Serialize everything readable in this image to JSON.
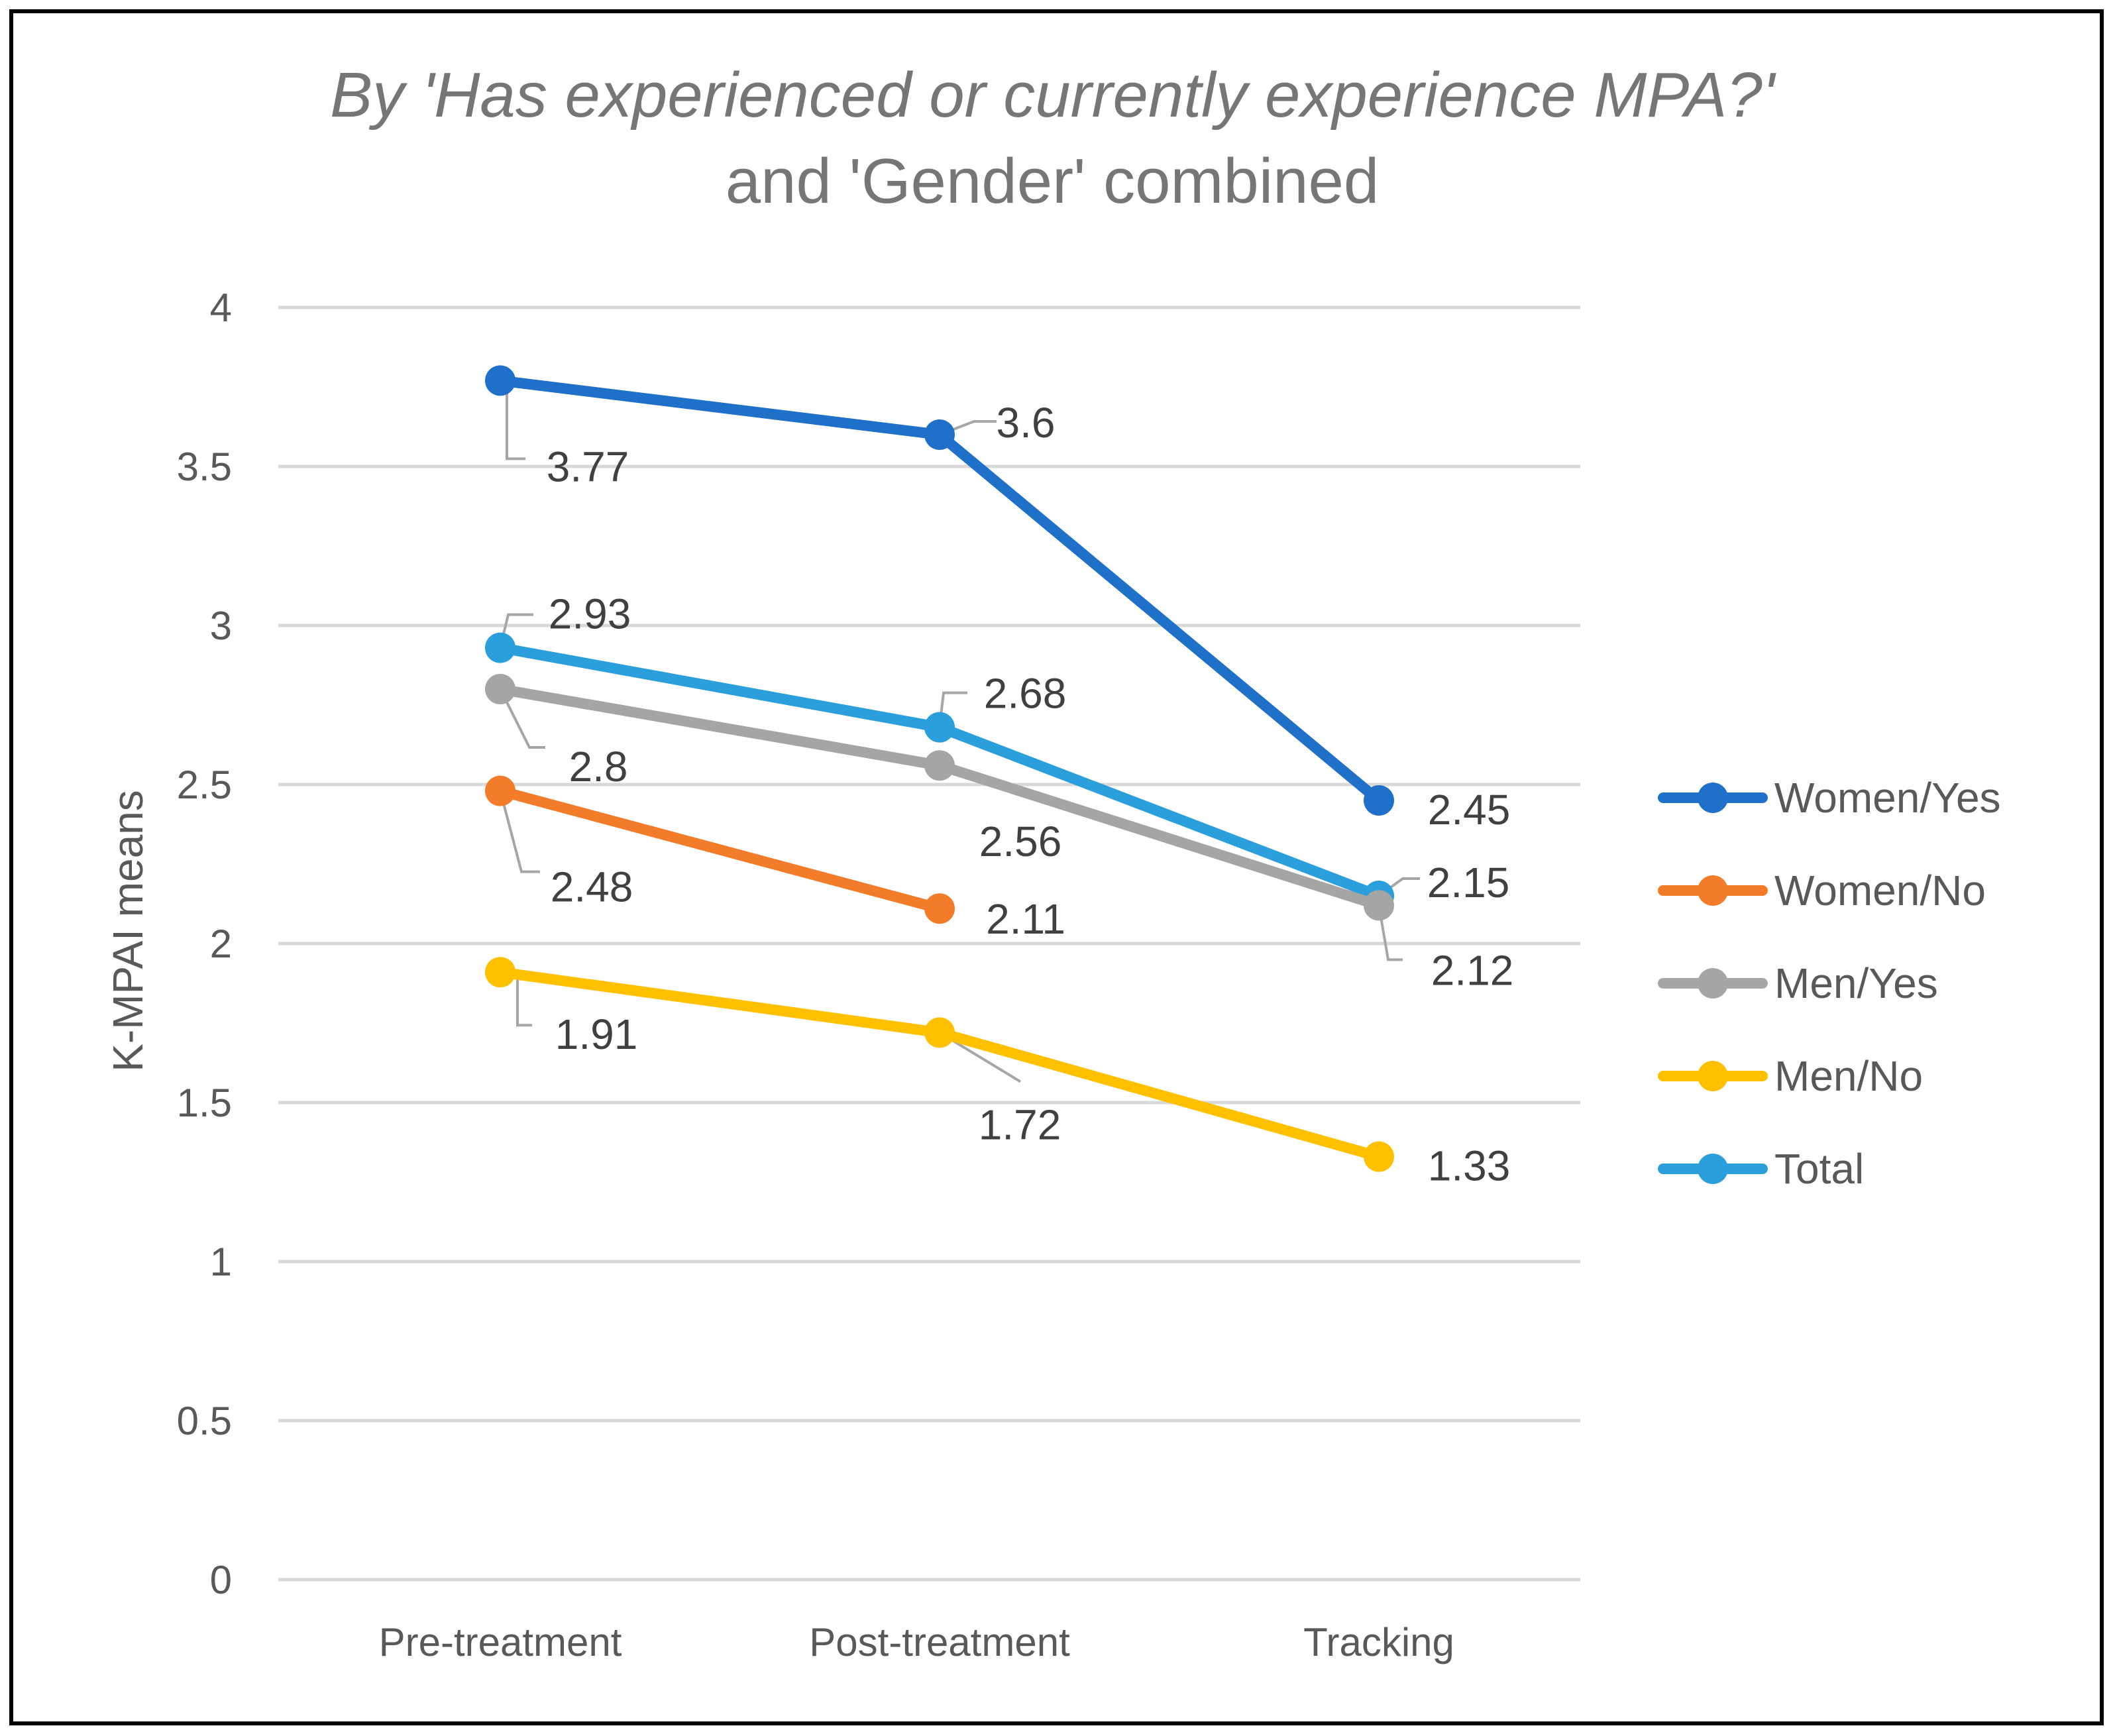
{
  "chart_data": {
    "type": "line",
    "title_line1": "By 'Has experienced or currently experience MPA?'",
    "title_line2": "and 'Gender' combined",
    "xlabel": "",
    "ylabel": "K-MPAI means",
    "categories": [
      "Pre-treatment",
      "Post-treatment",
      "Tracking"
    ],
    "ylim": [
      0,
      4
    ],
    "yticks": [
      0,
      0.5,
      1,
      1.5,
      2,
      2.5,
      3,
      3.5,
      4
    ],
    "ytick_labels": [
      "0",
      "0.5",
      "1",
      "1.5",
      "2",
      "2.5",
      "3",
      "3.5",
      "4"
    ],
    "grid": true,
    "legend_position": "right",
    "series": [
      {
        "name": "Women/Yes",
        "color": "#1F70C8",
        "values": [
          3.77,
          3.6,
          2.45
        ],
        "labels": [
          "3.77",
          "3.6",
          "2.45"
        ]
      },
      {
        "name": "Women/No",
        "color": "#F27C2A",
        "values": [
          2.48,
          2.11,
          null
        ],
        "labels": [
          "2.48",
          "2.11",
          ""
        ]
      },
      {
        "name": "Men/Yes",
        "color": "#A5A5A5",
        "values": [
          2.8,
          2.56,
          2.12
        ],
        "labels": [
          "2.8",
          "2.56",
          "2.12"
        ]
      },
      {
        "name": "Men/No",
        "color": "#FFC000",
        "values": [
          1.91,
          1.72,
          1.33
        ],
        "labels": [
          "1.91",
          "1.72",
          "1.33"
        ]
      },
      {
        "name": "Total",
        "color": "#2B9FDB",
        "values": [
          2.93,
          2.68,
          2.15
        ],
        "labels": [
          "2.93",
          "2.68",
          "2.15"
        ]
      }
    ]
  }
}
